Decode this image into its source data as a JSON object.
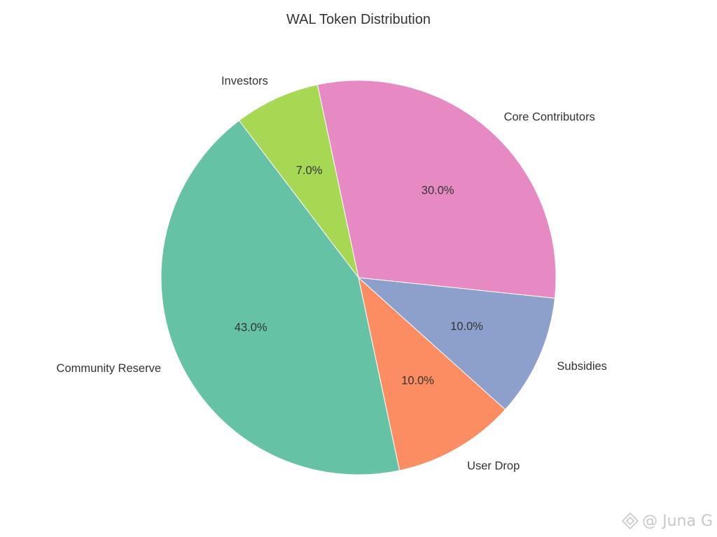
{
  "chart_data": {
    "type": "pie",
    "title": "WAL Token Distribution",
    "start_angle_deg": 127.2,
    "direction": "counterclockwise",
    "slices": [
      {
        "label": "Community Reserve",
        "value": 43.0,
        "pct_label": "43.0%",
        "color": "#66c2a5"
      },
      {
        "label": "User Drop",
        "value": 10.0,
        "pct_label": "10.0%",
        "color": "#fc8d62"
      },
      {
        "label": "Subsidies",
        "value": 10.0,
        "pct_label": "10.0%",
        "color": "#8da0cb"
      },
      {
        "label": "Core Contributors",
        "value": 30.0,
        "pct_label": "30.0%",
        "color": "#e78ac3"
      },
      {
        "label": "Investors",
        "value": 7.0,
        "pct_label": "7.0%",
        "color": "#a6d854"
      }
    ]
  },
  "watermark": {
    "text": "@ Juna G"
  }
}
